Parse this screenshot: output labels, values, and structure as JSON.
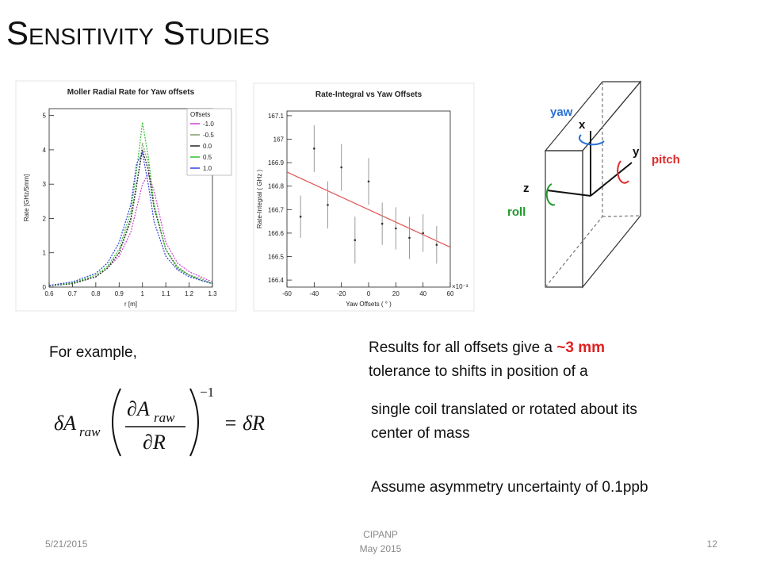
{
  "title": "Sensitivity Studies",
  "chart_data": [
    {
      "type": "line",
      "title": "Moller Radial Rate for Yaw offsets",
      "x_label": "r [m]",
      "y_label": "Rate [GHz/5mm]",
      "x": [
        0.6,
        0.7,
        0.8,
        0.85,
        0.9,
        0.95,
        0.975,
        1.0,
        1.025,
        1.05,
        1.1,
        1.15,
        1.2,
        1.25,
        1.3
      ],
      "series": [
        {
          "name": "-1.0",
          "color": "#d040d0",
          "values": [
            0.05,
            0.1,
            0.3,
            0.55,
            0.9,
            1.6,
            2.3,
            3.0,
            3.3,
            2.8,
            1.3,
            0.7,
            0.45,
            0.3,
            0.15
          ]
        },
        {
          "name": "-0.5",
          "color": "#7f9a6a",
          "values": [
            0.04,
            0.1,
            0.3,
            0.55,
            1.0,
            1.9,
            2.9,
            4.2,
            3.6,
            2.4,
            1.1,
            0.6,
            0.35,
            0.25,
            0.1
          ]
        },
        {
          "name": "0.0",
          "color": "#222222",
          "values": [
            0.04,
            0.1,
            0.3,
            0.55,
            1.0,
            2.0,
            3.0,
            4.0,
            3.4,
            2.3,
            1.1,
            0.55,
            0.35,
            0.2,
            0.1
          ]
        },
        {
          "name": "0.5",
          "color": "#30c030",
          "values": [
            0.05,
            0.12,
            0.35,
            0.6,
            1.1,
            2.2,
            3.4,
            4.8,
            3.8,
            2.4,
            1.1,
            0.55,
            0.35,
            0.2,
            0.1
          ]
        },
        {
          "name": "1.0",
          "color": "#3040e0",
          "values": [
            0.05,
            0.15,
            0.4,
            0.7,
            1.3,
            2.4,
            3.6,
            3.9,
            3.0,
            1.9,
            0.9,
            0.5,
            0.3,
            0.2,
            0.1
          ]
        }
      ],
      "legend_title": "Offsets",
      "legend": "upper right",
      "xlim": [
        0.6,
        1.3
      ],
      "xticks": [
        0.6,
        0.7,
        0.8,
        0.9,
        1,
        1.1,
        1.2,
        1.3
      ],
      "ylim": [
        0,
        5.2
      ],
      "yticks": [
        0,
        1,
        2,
        3,
        4,
        5
      ]
    },
    {
      "type": "scatter",
      "title": "Rate-Integral vs Yaw Offsets",
      "x_label": "Yaw Offsets ( ° )",
      "y_label": "Rate-Integral ( GHz )",
      "x_multiplier": "×10⁻³",
      "x": [
        -50,
        -40,
        -30,
        -20,
        -10,
        0,
        10,
        20,
        30,
        40,
        50
      ],
      "values": [
        166.67,
        166.96,
        166.72,
        166.88,
        166.57,
        166.82,
        166.64,
        166.62,
        166.58,
        166.6,
        166.55
      ],
      "errors": [
        0.09,
        0.1,
        0.1,
        0.1,
        0.1,
        0.1,
        0.09,
        0.09,
        0.09,
        0.08,
        0.08
      ],
      "color": "#333333",
      "fit": {
        "x": [
          -60,
          60
        ],
        "values": [
          166.86,
          166.54
        ],
        "color": "#e05555"
      },
      "xlim": [
        -60,
        60
      ],
      "xticks": [
        -60,
        -40,
        -20,
        0,
        20,
        40,
        60
      ],
      "ylim": [
        166.37,
        167.12
      ],
      "yticks": [
        166.4,
        166.5,
        166.6,
        166.7,
        166.8,
        166.9,
        167,
        167.1
      ]
    }
  ],
  "diagram": {
    "yaw": "yaw",
    "x": "x",
    "y": "y",
    "pitch": "pitch",
    "z": "z",
    "roll": "roll"
  },
  "example": "For example,",
  "formula": {
    "lhs": "δA",
    "lhs_sub": "raw",
    "num": "∂A",
    "num_sub": "raw",
    "den": "∂R",
    "exp": "−1",
    "rhs": "= δR"
  },
  "results": {
    "line1": "Results for all offsets give a ",
    "highlight": "~3 mm",
    "line2": "tolerance to shifts in position of a"
  },
  "coil": {
    "line1": "single coil translated or rotated about its",
    "line2": "center of mass"
  },
  "assume": "Assume  asymmetry uncertainty of 0.1ppb",
  "footer": {
    "date": "5/21/2015",
    "conf": "CIPANP",
    "conf_date": "May 2015",
    "page": "12"
  }
}
